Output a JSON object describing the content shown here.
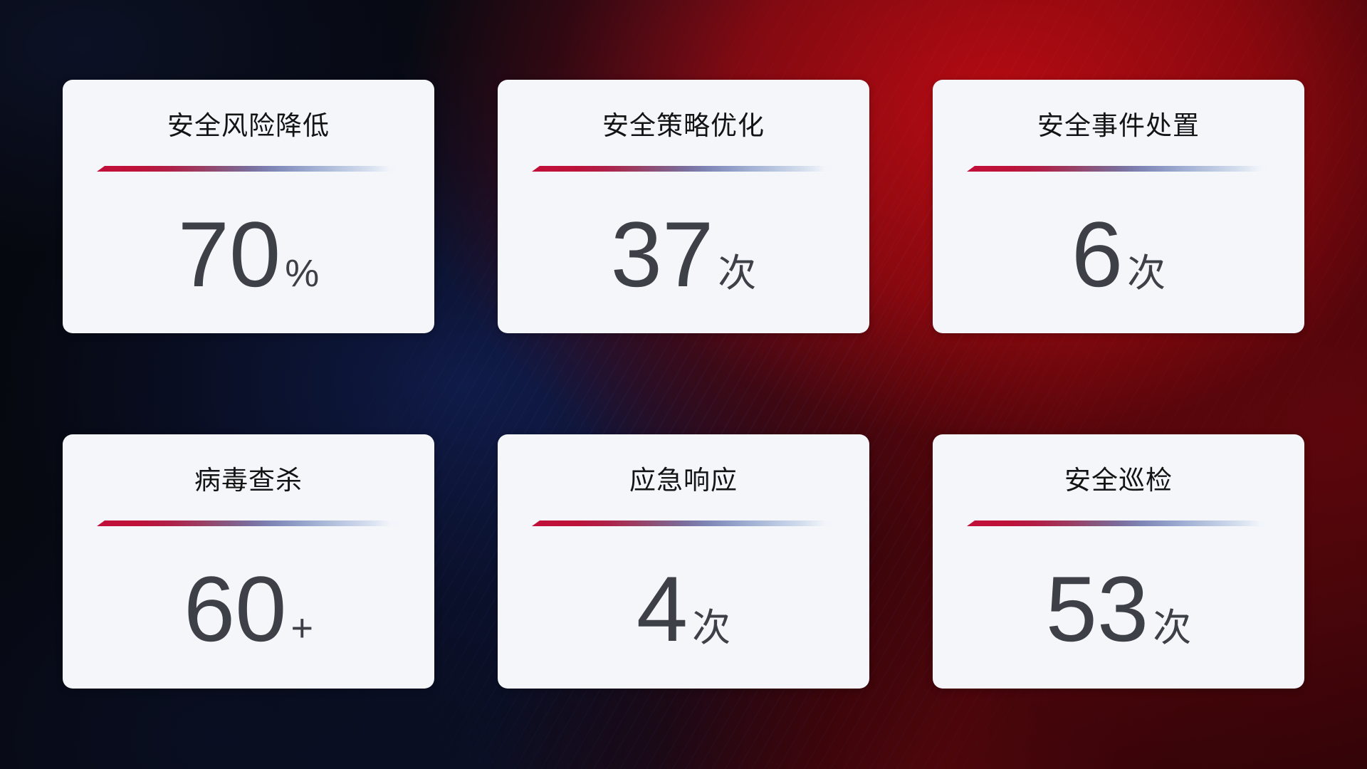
{
  "cards": [
    {
      "title": "安全风险降低",
      "value": "70",
      "unit": "%"
    },
    {
      "title": "安全策略优化",
      "value": "37",
      "unit": "次"
    },
    {
      "title": "安全事件处置",
      "value": "6",
      "unit": "次"
    },
    {
      "title": "病毒查杀",
      "value": "60",
      "unit": "+"
    },
    {
      "title": "应急响应",
      "value": "4",
      "unit": "次"
    },
    {
      "title": "安全巡检",
      "value": "53",
      "unit": "次"
    }
  ],
  "colors": {
    "card_background": "#f4f6fa",
    "title_text": "#141414",
    "value_text": "#3d4147",
    "divider_red": "#c11039",
    "divider_blue": "#aebfdb",
    "background_red": "#a50a12",
    "background_navy": "#0a1028"
  }
}
